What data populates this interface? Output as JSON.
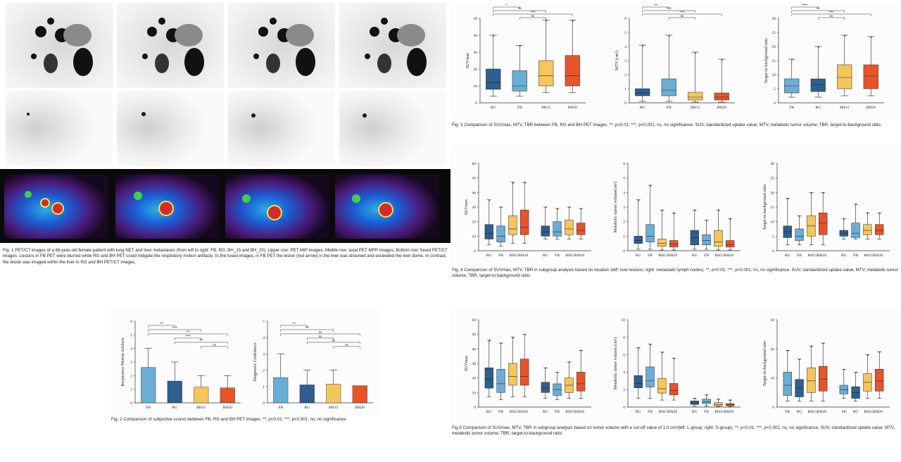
{
  "colors": {
    "RG": "#2e5f90",
    "FB": "#6aaed6",
    "BH15": "#f5c65a",
    "BH20": "#e8542a",
    "dark": "#1a1a1a"
  },
  "fig1": {
    "caption": "Fig. 1 PET/CT images of a 66-year-old female patient with lung NET and liver metastases (from left to right: FB, RG, BH_15 and BH_20). Upper row: PET MIP images; Middle row: axial PET MPR images; Bottom row: fused PET/CT images. Lesions in FB PET were blurred while RG and BH PET could mitigate the respiratory motion artifacts. In the fused images, in FB PET the lesion (red arrow) in the liver was distorted and exceeded the liver dome. In contrast, the lesion was imaged within the liver in RG and BH PET/CT images."
  },
  "fig2": {
    "caption": "Fig. 2 Comparison of subjective scores between FB, RG and BH PET images. **, p<0.01; ***, p<0.001; ns, no significance.",
    "chart_data": [
      {
        "type": "bar",
        "ylabel": "Respiratory Motion Artifacts",
        "categories": [
          "FB",
          "RG",
          "BH15",
          "BH20"
        ],
        "values": [
          2.6,
          1.6,
          1.15,
          1.1
        ],
        "errors": [
          1.4,
          1.4,
          0.85,
          0.9
        ],
        "ylim": [
          0,
          6
        ],
        "yticks": [
          "0",
          "1",
          "2",
          "3",
          "4",
          "5",
          "6"
        ],
        "sig": [
          "**",
          "***",
          "**",
          "***",
          "**",
          "ns"
        ]
      },
      {
        "type": "bar",
        "ylabel": "Diagnostic Confidence",
        "categories": [
          "FB",
          "RG",
          "BH15",
          "BH20"
        ],
        "values": [
          1.55,
          1.1,
          1.15,
          1.05
        ],
        "errors": [
          1.45,
          0.9,
          0.85,
          0
        ],
        "ylim": [
          0,
          5
        ],
        "yticks": [
          "0",
          "1",
          "2",
          "3",
          "4",
          "5"
        ],
        "sig": [
          "**",
          "**",
          "ns",
          "ns",
          "ns",
          "ns"
        ]
      }
    ]
  },
  "fig3": {
    "caption": "Fig. 3 Comparison of SUVmax, MTV, TBR between FB, RG and BH PET images. **, p<0.01; ***, p<0.001; ns, no significance. SUV, standardized uptake value; MTV, metabolic tumor volume; TBR, target-to-background ratio.",
    "chart_data": [
      {
        "type": "box",
        "ylabel": "SUVmax",
        "categories": [
          "RG",
          "FB",
          "BH15",
          "BH20"
        ],
        "ylim": [
          0,
          50
        ],
        "yticks": [
          "0",
          "10",
          "20",
          "30",
          "40",
          "50"
        ],
        "sig": [
          "*",
          "**",
          "***",
          "ns"
        ],
        "boxes": [
          [
            4,
            8,
            12,
            20,
            40
          ],
          [
            4,
            7,
            10,
            19,
            34
          ],
          [
            6,
            10,
            16,
            25,
            49
          ],
          [
            6,
            10,
            16,
            28,
            49
          ]
        ]
      },
      {
        "type": "box",
        "ylabel": "MTV (cm³)",
        "categories": [
          "RG",
          "FB",
          "BH15",
          "BH20"
        ],
        "ylim": [
          0,
          6
        ],
        "yticks": [
          "0",
          "1",
          "2",
          "3",
          "4",
          "5",
          "6"
        ],
        "sig": [
          "**",
          "***",
          "***",
          "ns"
        ],
        "boxes": [
          [
            0.1,
            0.5,
            0.7,
            1.0,
            4.1
          ],
          [
            0.1,
            0.5,
            0.9,
            1.7,
            4.8
          ],
          [
            0.05,
            0.2,
            0.4,
            0.75,
            3.6
          ],
          [
            0.05,
            0.2,
            0.4,
            0.7,
            3.1
          ]
        ]
      },
      {
        "type": "box",
        "ylabel": "Target-to-background ratio",
        "categories": [
          "FB",
          "RG",
          "BH15",
          "BH20"
        ],
        "ylim": [
          0,
          30
        ],
        "yticks": [
          "0",
          "5",
          "10",
          "15",
          "20",
          "25",
          "30"
        ],
        "sig": [
          "***",
          "**",
          "***",
          "ns"
        ],
        "boxes": [
          [
            2,
            3.5,
            6,
            8.5,
            15.5
          ],
          [
            2,
            4,
            6.5,
            8.5,
            20
          ],
          [
            2.5,
            5,
            9,
            13.5,
            24
          ],
          [
            2.5,
            5,
            9.5,
            13.5,
            23.5
          ]
        ]
      }
    ]
  },
  "fig4": {
    "caption": "Fig. 4 Comparison of SUVmax, MTV, TBR in subgroup analysis based on location (left: liver lesions; right: metastatic lymph nodes). **, p<0.01; ***, p<0.001; ns, no significance. SUV, standardized uptake value; MTV, metabolic tumor volume; TBR, target-to-background ratio.",
    "chart_data": [
      {
        "type": "box",
        "ylabel": "SUVmax",
        "categories": [
          "RG",
          "FB",
          "BH15",
          "BH20",
          "RG",
          "FB",
          "BH15",
          "BH20"
        ],
        "tick_label": [
          "RG",
          "FB",
          "BH15BH20",
          "",
          "RG",
          "FB",
          "BH15BH20",
          ""
        ],
        "ylim": [
          0,
          60
        ],
        "yticks": [
          "0",
          "10",
          "20",
          "30",
          "40",
          "50",
          "60"
        ],
        "boxes": [
          [
            4,
            8,
            12,
            18,
            35
          ],
          [
            3,
            6,
            10,
            17,
            30
          ],
          [
            5,
            11,
            15,
            24,
            47
          ],
          [
            5,
            11,
            16,
            28,
            47
          ],
          [
            8,
            10,
            13,
            17,
            30
          ],
          [
            8,
            10,
            13,
            20,
            29
          ],
          [
            8,
            11,
            15,
            21,
            30
          ],
          [
            8,
            11,
            14,
            19,
            29
          ]
        ]
      },
      {
        "type": "box",
        "ylabel": "Metabolic tumor volume(cm³)",
        "categories": [
          "RG",
          "FB",
          "BH15",
          "BH20",
          "RG",
          "FB",
          "BH15",
          "BH20"
        ],
        "tick_label": [
          "RG",
          "FB",
          "BH15BH20",
          "",
          "RG",
          "FB",
          "BH15BH20",
          ""
        ],
        "ylim": [
          0,
          6
        ],
        "yticks": [
          "0",
          "1",
          "2",
          "3",
          "4",
          "5",
          "6"
        ],
        "boxes": [
          [
            0.1,
            0.5,
            0.7,
            1.0,
            3.5
          ],
          [
            0.1,
            0.6,
            1.0,
            1.8,
            4.5
          ],
          [
            0.05,
            0.3,
            0.5,
            0.8,
            2.8
          ],
          [
            0.05,
            0.25,
            0.45,
            0.7,
            2.6
          ],
          [
            0.1,
            0.4,
            0.9,
            1.4,
            2.8
          ],
          [
            0.1,
            0.4,
            0.7,
            1.1,
            2.1
          ],
          [
            0.05,
            0.3,
            0.6,
            1.4,
            2.8
          ],
          [
            0.05,
            0.25,
            0.4,
            0.7,
            2.2
          ]
        ]
      },
      {
        "type": "box",
        "ylabel": "Target-to-background ratio",
        "categories": [
          "RG",
          "FB",
          "BH15",
          "BH20",
          "RG",
          "FB",
          "BH15",
          "BH20"
        ],
        "tick_label": [
          "RG",
          "FB",
          "BH15BH20",
          "",
          "RG",
          "FB",
          "BH15BH20",
          ""
        ],
        "ylim": [
          0,
          30
        ],
        "yticks": [
          "0",
          "5",
          "10",
          "15",
          "20",
          "25",
          "30"
        ],
        "boxes": [
          [
            2,
            4.5,
            6.5,
            8.5,
            18
          ],
          [
            2,
            3.5,
            5,
            7.5,
            12
          ],
          [
            2,
            5,
            8.5,
            12,
            20
          ],
          [
            2,
            5.5,
            9.5,
            13,
            20
          ],
          [
            4,
            5,
            6,
            7,
            11
          ],
          [
            4,
            4.5,
            6,
            9.5,
            16
          ],
          [
            4,
            5.5,
            7,
            9,
            13
          ],
          [
            4,
            5.5,
            7,
            9,
            13
          ]
        ]
      }
    ]
  },
  "fig5": {
    "caption": "Fig.5 Comparison of SUVmax, MTV, TBR in subgroup analysis based on tumor volume with a cut-off value of 1.0 cm³(left: L-group; right: S-group). **, p<0.01; ***, p<0.001; ns, no significance. SUV, standardized uptake value; MTV, metabolic tumor volume; TBR, target-to-background ratio.",
    "chart_data": [
      {
        "type": "box",
        "ylabel": "SUVmax",
        "categories": [
          "RG",
          "FB",
          "BH15",
          "BH20",
          "RG",
          "FB",
          "BH15",
          "BH20"
        ],
        "tick_label": [
          "RG",
          "FB",
          "BH15BH20",
          "",
          "RG",
          "FB",
          "BH15BH20",
          ""
        ],
        "ylim": [
          0,
          60
        ],
        "yticks": [
          "0",
          "10",
          "20",
          "30",
          "40",
          "50",
          "60"
        ],
        "boxes": [
          [
            7,
            13,
            19,
            27,
            46
          ],
          [
            5,
            10,
            16,
            26,
            44
          ],
          [
            7,
            15,
            21,
            30,
            48
          ],
          [
            7,
            15,
            21,
            33,
            50
          ],
          [
            6,
            10,
            13,
            17,
            27
          ],
          [
            5,
            8,
            12,
            16,
            24
          ],
          [
            6,
            10,
            15,
            20,
            31
          ],
          [
            6,
            11,
            16,
            24,
            39
          ]
        ]
      },
      {
        "type": "box",
        "ylabel": "Metabolic tumor volume (cm³)",
        "categories": [
          "RG",
          "FB",
          "BH15",
          "BH20",
          "RG",
          "FB",
          "BH15",
          "BH20"
        ],
        "tick_label": [
          "RG",
          "FB",
          "BH15BH20",
          "",
          "RG",
          "FB",
          "BH15BH20",
          ""
        ],
        "ylim": [
          0,
          10
        ],
        "yticks": [
          "0",
          "2",
          "4",
          "6",
          "8",
          "10"
        ],
        "boxes": [
          [
            1,
            2.2,
            2.7,
            3.6,
            6.8
          ],
          [
            1,
            2.3,
            3.0,
            4.6,
            7.2
          ],
          [
            0.8,
            1.6,
            2.1,
            3.3,
            6.3
          ],
          [
            0.8,
            1.4,
            1.9,
            2.7,
            5.6
          ],
          [
            0.1,
            0.3,
            0.45,
            0.7,
            1.0
          ],
          [
            0.1,
            0.4,
            0.6,
            0.9,
            1.4
          ],
          [
            0.05,
            0.15,
            0.3,
            0.5,
            0.9
          ],
          [
            0.05,
            0.15,
            0.25,
            0.4,
            0.8
          ]
        ]
      },
      {
        "type": "box",
        "ylabel": "Target-to-background ratio",
        "categories": [
          "FB",
          "RG",
          "BH15",
          "BH20",
          "FB",
          "RG",
          "BH15",
          "BH20"
        ],
        "tick_label": [
          "FB",
          "RG",
          "BH15BH20",
          "",
          "FB",
          "RG",
          "BH15BH20",
          ""
        ],
        "ylim": [
          0,
          30
        ],
        "yticks": [
          "0",
          "10",
          "20",
          "30"
        ],
        "boxes": [
          [
            2,
            4,
            7.5,
            12,
            19.5
          ],
          [
            2,
            3.5,
            6.5,
            9.5,
            16.5
          ],
          [
            2,
            5,
            9,
            13.5,
            21
          ],
          [
            2,
            5.5,
            9.5,
            14,
            22
          ],
          [
            3,
            4.5,
            6,
            7.5,
            13
          ],
          [
            2,
            3,
            5,
            7,
            12
          ],
          [
            3,
            5.5,
            8.5,
            11.5,
            18
          ],
          [
            3,
            5.5,
            9,
            13,
            19
          ]
        ]
      }
    ]
  }
}
